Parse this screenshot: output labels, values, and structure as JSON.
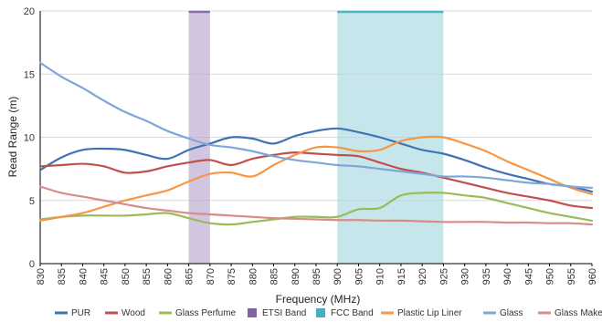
{
  "chart_data": {
    "type": "line",
    "xlabel": "Frequency (MHz)",
    "ylabel": "Read Range (m)",
    "xlim": [
      830,
      960
    ],
    "ylim": [
      0,
      20
    ],
    "x_ticks": [
      "830",
      "835",
      "840",
      "845",
      "850",
      "855",
      "860",
      "865",
      "870",
      "875",
      "880",
      "885",
      "890",
      "895",
      "900",
      "905",
      "910",
      "915",
      "920",
      "925",
      "930",
      "935",
      "940",
      "945",
      "950",
      "955",
      "960"
    ],
    "y_ticks": [
      "0",
      "5",
      "10",
      "15",
      "20"
    ],
    "grid": "horizontal",
    "legend_position": "bottom",
    "bands": [
      {
        "name": "ETSI Band",
        "from": 865,
        "to": 870,
        "color": "#b9a6cf",
        "edge_color": "#8e6aad"
      },
      {
        "name": "FCC Band",
        "from": 900,
        "to": 925,
        "color": "#a9d8e1",
        "edge_color": "#4db3c6"
      }
    ],
    "x": [
      830,
      835,
      840,
      845,
      850,
      855,
      860,
      865,
      870,
      875,
      880,
      885,
      890,
      895,
      900,
      905,
      910,
      915,
      920,
      925,
      930,
      935,
      940,
      945,
      950,
      955,
      960
    ],
    "series": [
      {
        "name": "PUR",
        "color": "#3d72b4",
        "values": [
          7.4,
          8.4,
          9.0,
          9.1,
          9.0,
          8.6,
          8.3,
          9.0,
          9.5,
          10.0,
          9.9,
          9.5,
          10.1,
          10.5,
          10.7,
          10.4,
          10.0,
          9.5,
          9.0,
          8.7,
          8.2,
          7.6,
          7.1,
          6.7,
          6.3,
          6.1,
          5.7
        ]
      },
      {
        "name": "Wood",
        "color": "#c0504d",
        "values": [
          7.7,
          7.8,
          7.9,
          7.7,
          7.2,
          7.3,
          7.7,
          8.0,
          8.2,
          7.8,
          8.3,
          8.6,
          8.8,
          8.7,
          8.6,
          8.5,
          8.0,
          7.5,
          7.2,
          6.8,
          6.4,
          6.0,
          5.6,
          5.3,
          5.0,
          4.6,
          4.4
        ]
      },
      {
        "name": "Glass Perfume",
        "color": "#9bbb59",
        "values": [
          3.5,
          3.7,
          3.8,
          3.8,
          3.8,
          3.9,
          4.0,
          3.6,
          3.2,
          3.1,
          3.3,
          3.5,
          3.7,
          3.7,
          3.7,
          4.3,
          4.4,
          5.4,
          5.6,
          5.6,
          5.4,
          5.2,
          4.8,
          4.4,
          4.0,
          3.7,
          3.4
        ]
      },
      {
        "name": "ETSI Band",
        "color": "#8064a2",
        "band": true
      },
      {
        "name": "FCC Band",
        "color": "#4bacc6",
        "band": true
      },
      {
        "name": "Plastic Lip Liner",
        "color": "#f79646",
        "values": [
          3.4,
          3.7,
          4.0,
          4.5,
          5.0,
          5.4,
          5.8,
          6.5,
          7.1,
          7.2,
          6.9,
          7.8,
          8.6,
          9.2,
          9.2,
          8.9,
          9.0,
          9.7,
          10.0,
          10.0,
          9.5,
          8.9,
          8.1,
          7.4,
          6.7,
          6.0,
          5.5
        ]
      },
      {
        "name": "Glass",
        "color": "#7fa6d9",
        "values": [
          15.9,
          14.8,
          13.9,
          12.9,
          12.0,
          11.3,
          10.5,
          9.9,
          9.4,
          9.2,
          8.9,
          8.5,
          8.2,
          8.0,
          7.8,
          7.7,
          7.5,
          7.3,
          7.1,
          6.9,
          6.9,
          6.8,
          6.6,
          6.4,
          6.3,
          6.1,
          6.0
        ]
      },
      {
        "name": "Glass Makeup",
        "color": "#d98c8a",
        "values": [
          6.1,
          5.6,
          5.3,
          5.0,
          4.7,
          4.4,
          4.2,
          4.0,
          3.9,
          3.8,
          3.7,
          3.6,
          3.55,
          3.5,
          3.45,
          3.45,
          3.4,
          3.4,
          3.35,
          3.3,
          3.3,
          3.3,
          3.25,
          3.25,
          3.2,
          3.2,
          3.1
        ]
      }
    ]
  }
}
